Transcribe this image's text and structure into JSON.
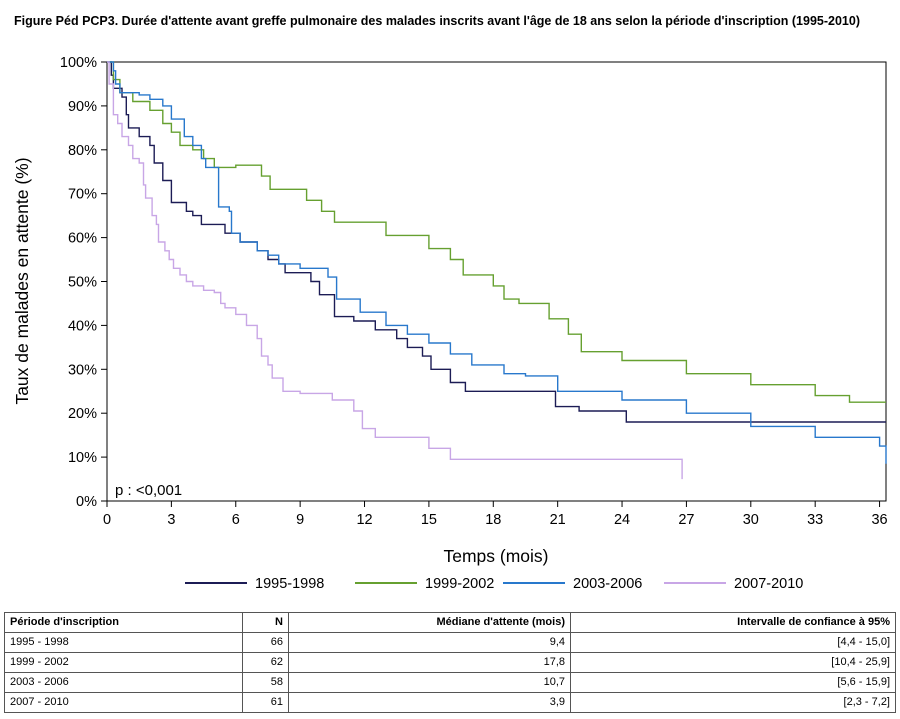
{
  "title": "Figure Péd PCP3. Durée d'attente avant greffe pulmonaire des malades inscrits avant l'âge de 18 ans selon la période d'inscription (1995-2010)",
  "chart_data": {
    "type": "line",
    "step": true,
    "xlabel": "Temps (mois)",
    "ylabel": "Taux de malades en attente (%)",
    "xlim": [
      0,
      36.3
    ],
    "ylim": [
      0,
      100
    ],
    "x_ticks": [
      0,
      3,
      6,
      9,
      12,
      15,
      18,
      21,
      24,
      27,
      30,
      33,
      36
    ],
    "y_ticks": [
      0,
      10,
      20,
      30,
      40,
      50,
      60,
      70,
      80,
      90,
      100
    ],
    "y_tick_labels": [
      "0%",
      "10%",
      "20%",
      "30%",
      "40%",
      "50%",
      "60%",
      "70%",
      "80%",
      "90%",
      "100%"
    ],
    "annotation": "p : <0,001",
    "legend_position": "bottom",
    "grid": false,
    "series": [
      {
        "name": "1995-1998",
        "color": "#1c1c55",
        "points": [
          [
            0,
            100
          ],
          [
            0.2,
            97
          ],
          [
            0.3,
            94
          ],
          [
            0.7,
            92
          ],
          [
            0.9,
            88
          ],
          [
            1.0,
            85
          ],
          [
            1.5,
            83
          ],
          [
            2.0,
            81
          ],
          [
            2.2,
            77
          ],
          [
            2.6,
            73
          ],
          [
            3.0,
            68
          ],
          [
            3.4,
            68
          ],
          [
            3.7,
            66
          ],
          [
            4.0,
            65
          ],
          [
            4.4,
            63
          ],
          [
            5.5,
            61
          ],
          [
            6.2,
            59
          ],
          [
            7.0,
            57
          ],
          [
            7.5,
            55
          ],
          [
            8.0,
            54
          ],
          [
            8.3,
            52
          ],
          [
            9.5,
            50
          ],
          [
            9.9,
            47
          ],
          [
            10.4,
            47
          ],
          [
            10.6,
            42
          ],
          [
            11.5,
            41
          ],
          [
            12.5,
            39
          ],
          [
            13.0,
            39
          ],
          [
            13.5,
            37
          ],
          [
            14.0,
            35
          ],
          [
            14.7,
            33
          ],
          [
            15.1,
            30
          ],
          [
            16.0,
            27
          ],
          [
            16.7,
            25
          ],
          [
            20.2,
            25
          ],
          [
            20.9,
            21.5
          ],
          [
            22.0,
            20.5
          ],
          [
            24.2,
            18
          ],
          [
            36.3,
            18
          ]
        ]
      },
      {
        "name": "1999-2002",
        "color": "#66a030",
        "points": [
          [
            0,
            100
          ],
          [
            0.3,
            96
          ],
          [
            0.6,
            93
          ],
          [
            0.9,
            93
          ],
          [
            1.2,
            91
          ],
          [
            1.8,
            91
          ],
          [
            2.0,
            89
          ],
          [
            2.6,
            86
          ],
          [
            3.0,
            84
          ],
          [
            3.4,
            81
          ],
          [
            4.0,
            80
          ],
          [
            4.5,
            78
          ],
          [
            5.0,
            76
          ],
          [
            6.0,
            76.5
          ],
          [
            7.2,
            74
          ],
          [
            7.6,
            71
          ],
          [
            9.3,
            68.5
          ],
          [
            10.0,
            66
          ],
          [
            10.6,
            63.5
          ],
          [
            12.9,
            63.5
          ],
          [
            13.0,
            60.5
          ],
          [
            14.9,
            60.5
          ],
          [
            15.0,
            57.5
          ],
          [
            16.0,
            55
          ],
          [
            16.6,
            51.5
          ],
          [
            18.0,
            49
          ],
          [
            18.5,
            46
          ],
          [
            19.2,
            45
          ],
          [
            20.4,
            45
          ],
          [
            20.6,
            41.5
          ],
          [
            21.5,
            38
          ],
          [
            22.1,
            34
          ],
          [
            24.0,
            32
          ],
          [
            27.0,
            29
          ],
          [
            30.0,
            26.5
          ],
          [
            33.0,
            24
          ],
          [
            34.6,
            22.5
          ],
          [
            36.3,
            22.5
          ]
        ]
      },
      {
        "name": "2003-2006",
        "color": "#2878cc",
        "points": [
          [
            0,
            100
          ],
          [
            0.3,
            98
          ],
          [
            0.4,
            95
          ],
          [
            0.6,
            93
          ],
          [
            1.0,
            93
          ],
          [
            1.5,
            92.5
          ],
          [
            2.0,
            91.5
          ],
          [
            2.6,
            90
          ],
          [
            3.0,
            87
          ],
          [
            3.6,
            83
          ],
          [
            4.0,
            81
          ],
          [
            4.4,
            78
          ],
          [
            4.6,
            76
          ],
          [
            5.0,
            76
          ],
          [
            5.2,
            67
          ],
          [
            5.7,
            66
          ],
          [
            5.8,
            61
          ],
          [
            6.2,
            59
          ],
          [
            7.0,
            57
          ],
          [
            7.5,
            56
          ],
          [
            8.0,
            54
          ],
          [
            9.0,
            53
          ],
          [
            10.3,
            51
          ],
          [
            10.7,
            46
          ],
          [
            11.8,
            43
          ],
          [
            12.7,
            43
          ],
          [
            13.0,
            40
          ],
          [
            14.0,
            38
          ],
          [
            15.0,
            36
          ],
          [
            16.0,
            33.5
          ],
          [
            17.0,
            31
          ],
          [
            18.5,
            29
          ],
          [
            19.5,
            28.5
          ],
          [
            20.3,
            28.5
          ],
          [
            21.0,
            25
          ],
          [
            22.5,
            25
          ],
          [
            24.0,
            23
          ],
          [
            27.0,
            20
          ],
          [
            30.0,
            17
          ],
          [
            33.0,
            14.5
          ],
          [
            36.0,
            12.5
          ],
          [
            36.3,
            8.5
          ]
        ]
      },
      {
        "name": "2007-2010",
        "color": "#c8a6e6",
        "points": [
          [
            0,
            100
          ],
          [
            0.1,
            95
          ],
          [
            0.3,
            88
          ],
          [
            0.5,
            86
          ],
          [
            0.7,
            83
          ],
          [
            1.0,
            81
          ],
          [
            1.2,
            78
          ],
          [
            1.5,
            77
          ],
          [
            1.7,
            72
          ],
          [
            1.8,
            69
          ],
          [
            2.1,
            65
          ],
          [
            2.3,
            63
          ],
          [
            2.4,
            59
          ],
          [
            2.7,
            57
          ],
          [
            2.9,
            55
          ],
          [
            3.1,
            53
          ],
          [
            3.4,
            51.5
          ],
          [
            3.7,
            50
          ],
          [
            4.0,
            49
          ],
          [
            4.5,
            48
          ],
          [
            5.0,
            47.5
          ],
          [
            5.3,
            45
          ],
          [
            5.5,
            44
          ],
          [
            6.0,
            42.5
          ],
          [
            6.5,
            40
          ],
          [
            7.0,
            37
          ],
          [
            7.2,
            33
          ],
          [
            7.5,
            31
          ],
          [
            7.7,
            28
          ],
          [
            8.2,
            25
          ],
          [
            9.0,
            24.5
          ],
          [
            10.5,
            23
          ],
          [
            11.5,
            20.5
          ],
          [
            11.9,
            16.5
          ],
          [
            12.5,
            14.5
          ],
          [
            13.8,
            14.5
          ],
          [
            15.0,
            12
          ],
          [
            16.0,
            9.5
          ],
          [
            25.9,
            9.5
          ],
          [
            26.8,
            5
          ]
        ]
      }
    ]
  },
  "table": {
    "headers": [
      "Période d'inscription",
      "N",
      "Médiane d'attente (mois)",
      "Intervalle de confiance à 95%"
    ],
    "rows": [
      [
        "1995 - 1998",
        "66",
        "9,4",
        "[4,4 - 15,0]"
      ],
      [
        "1999 - 2002",
        "62",
        "17,8",
        "[10,4 - 25,9]"
      ],
      [
        "2003 - 2006",
        "58",
        "10,7",
        "[5,6 - 15,9]"
      ],
      [
        "2007 - 2010",
        "61",
        "3,9",
        "[2,3 - 7,2]"
      ]
    ]
  }
}
